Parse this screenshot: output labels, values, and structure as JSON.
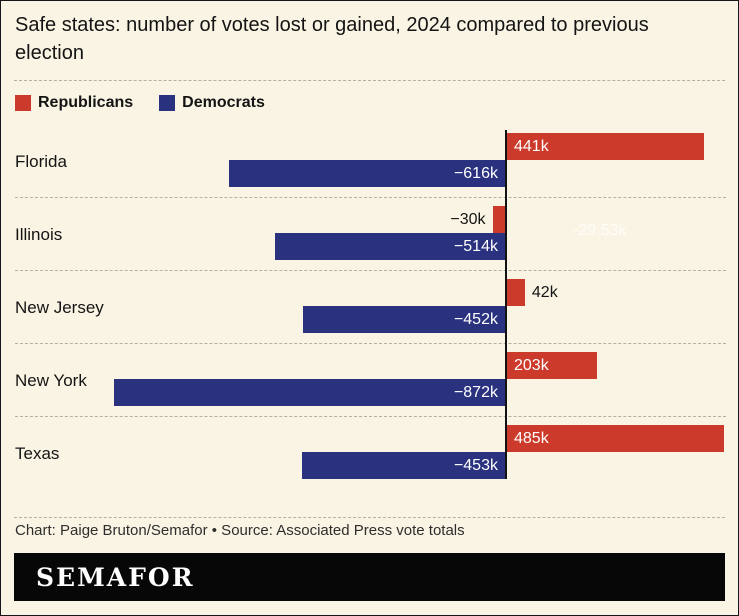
{
  "title": "Safe states: number of votes lost or gained, 2024 compared to previous election",
  "legend": [
    {
      "label": "Republicans",
      "color": "#cb3a2a"
    },
    {
      "label": "Democrats",
      "color": "#2a327f"
    }
  ],
  "chart_data": {
    "type": "bar",
    "orientation": "horizontal",
    "title": "Safe states: number of votes lost or gained, 2024 compared to previous election",
    "categories": [
      "Florida",
      "Illinois",
      "New Jersey",
      "New York",
      "Texas"
    ],
    "series": [
      {
        "name": "Republicans",
        "color": "#cb3a2a",
        "values": [
          441,
          -30,
          42,
          203,
          485
        ],
        "labels": [
          "441k",
          "−30k",
          "42k",
          "203k",
          "485k"
        ]
      },
      {
        "name": "Democrats",
        "color": "#2a327f",
        "values": [
          -616,
          -514,
          -452,
          -872,
          -453
        ],
        "labels": [
          "−616k",
          "−514k",
          "−452k",
          "−872k",
          "−453k"
        ]
      }
    ],
    "unit": "k votes",
    "xlim": [
      -1090,
      520
    ],
    "baseline": 0,
    "grid": false,
    "legend_position": "top-left"
  },
  "ghost_label": "-29.53k",
  "credit": "Chart: Paige Bruton/Semafor • Source: Associated Press vote totals",
  "logo": "SEMAFOR"
}
